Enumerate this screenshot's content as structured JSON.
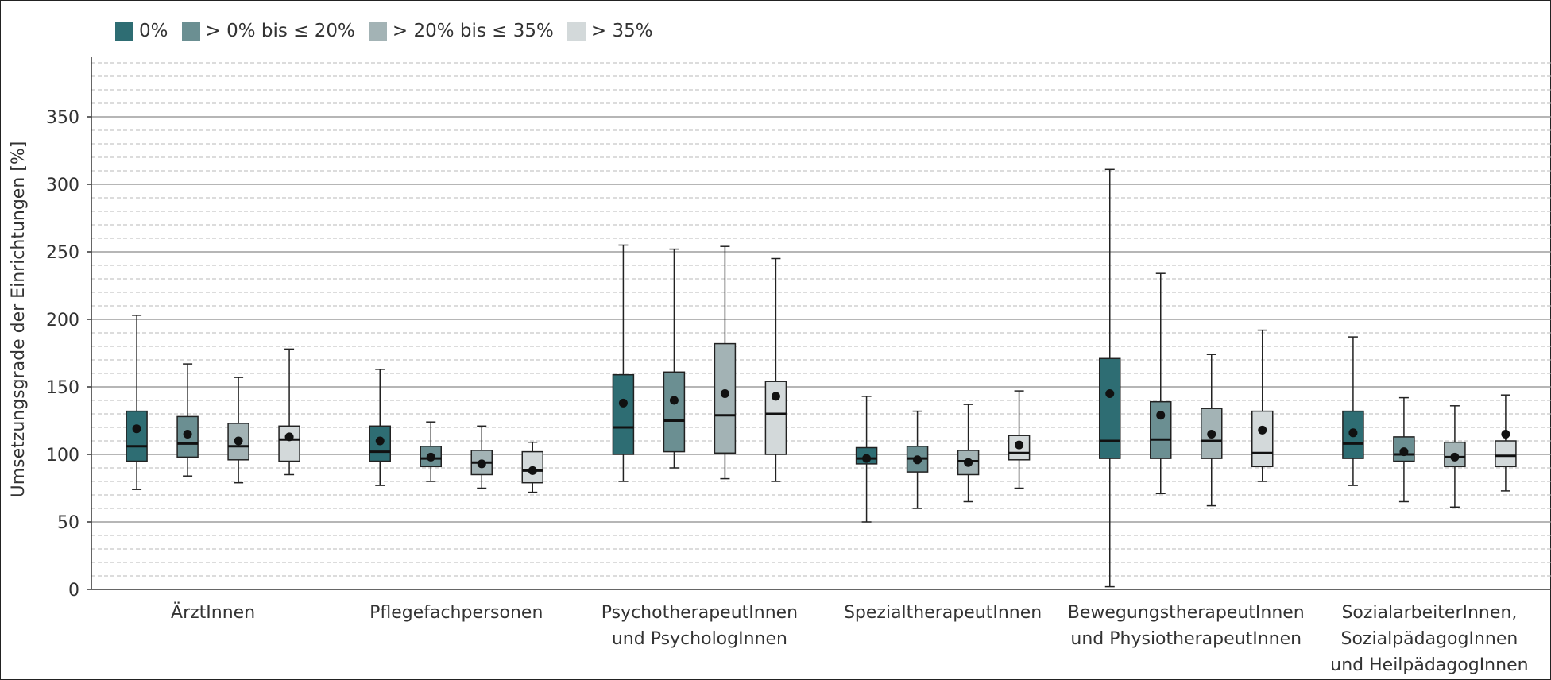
{
  "chart_data": {
    "type": "boxplot",
    "ylabel": "Umsetzungsgrade der Einrichtungen [%]",
    "ylim": [
      0,
      390
    ],
    "yticks": [
      0,
      50,
      100,
      150,
      200,
      250,
      300,
      350
    ],
    "minor_grid_step": 10,
    "legend_position": "top-left",
    "categories": [
      [
        "ÄrztInnen"
      ],
      [
        "Pflegefachpersonen"
      ],
      [
        "PsychotherapeutInnen",
        "und PsychologInnen"
      ],
      [
        "SpezialtherapeutInnen"
      ],
      [
        "BewegungstherapeutInnen",
        "und PhysiotherapeutInnen"
      ],
      [
        "SozialarbeiterInnen,",
        "SozialpädagogInnen",
        "und HeilpädagogInnen"
      ]
    ],
    "series": [
      {
        "name": "0%",
        "color": "#2e6d73",
        "boxes": [
          {
            "min": 74,
            "q1": 95,
            "median": 106,
            "q3": 132,
            "max": 203,
            "mean": 119
          },
          {
            "min": 77,
            "q1": 95,
            "median": 102,
            "q3": 121,
            "max": 163,
            "mean": 110
          },
          {
            "min": 80,
            "q1": 100,
            "median": 120,
            "q3": 159,
            "max": 255,
            "mean": 138
          },
          {
            "min": 50,
            "q1": 93,
            "median": 97,
            "q3": 105,
            "max": 143,
            "mean": 97
          },
          {
            "min": 2,
            "q1": 97,
            "median": 110,
            "q3": 171,
            "max": 311,
            "mean": 145
          },
          {
            "min": 77,
            "q1": 97,
            "median": 108,
            "q3": 132,
            "max": 187,
            "mean": 116
          }
        ]
      },
      {
        "name": "> 0% bis ≤ 20%",
        "color": "#6b8f92",
        "boxes": [
          {
            "min": 84,
            "q1": 98,
            "median": 108,
            "q3": 128,
            "max": 167,
            "mean": 115
          },
          {
            "min": 80,
            "q1": 91,
            "median": 97,
            "q3": 106,
            "max": 124,
            "mean": 98
          },
          {
            "min": 90,
            "q1": 102,
            "median": 125,
            "q3": 161,
            "max": 252,
            "mean": 140
          },
          {
            "min": 60,
            "q1": 87,
            "median": 97,
            "q3": 106,
            "max": 132,
            "mean": 96
          },
          {
            "min": 71,
            "q1": 97,
            "median": 111,
            "q3": 139,
            "max": 234,
            "mean": 129
          },
          {
            "min": 65,
            "q1": 95,
            "median": 100,
            "q3": 113,
            "max": 142,
            "mean": 102
          }
        ]
      },
      {
        "name": "> 20% bis ≤ 35%",
        "color": "#a3b3b5",
        "boxes": [
          {
            "min": 79,
            "q1": 96,
            "median": 106,
            "q3": 123,
            "max": 157,
            "mean": 110
          },
          {
            "min": 75,
            "q1": 85,
            "median": 94,
            "q3": 103,
            "max": 121,
            "mean": 93
          },
          {
            "min": 82,
            "q1": 101,
            "median": 129,
            "q3": 182,
            "max": 254,
            "mean": 145
          },
          {
            "min": 65,
            "q1": 85,
            "median": 95,
            "q3": 103,
            "max": 137,
            "mean": 94
          },
          {
            "min": 62,
            "q1": 97,
            "median": 110,
            "q3": 134,
            "max": 174,
            "mean": 115
          },
          {
            "min": 61,
            "q1": 91,
            "median": 98,
            "q3": 109,
            "max": 136,
            "mean": 98
          }
        ]
      },
      {
        "name": "> 35%",
        "color": "#d3d9da",
        "boxes": [
          {
            "min": 85,
            "q1": 95,
            "median": 111,
            "q3": 121,
            "max": 178,
            "mean": 113
          },
          {
            "min": 72,
            "q1": 79,
            "median": 88,
            "q3": 102,
            "max": 109,
            "mean": 88
          },
          {
            "min": 80,
            "q1": 100,
            "median": 130,
            "q3": 154,
            "max": 245,
            "mean": 143
          },
          {
            "min": 75,
            "q1": 96,
            "median": 101,
            "q3": 114,
            "max": 147,
            "mean": 107
          },
          {
            "min": 80,
            "q1": 91,
            "median": 101,
            "q3": 132,
            "max": 192,
            "mean": 118
          },
          {
            "min": 73,
            "q1": 91,
            "median": 99,
            "q3": 110,
            "max": 144,
            "mean": 115
          }
        ]
      }
    ]
  }
}
